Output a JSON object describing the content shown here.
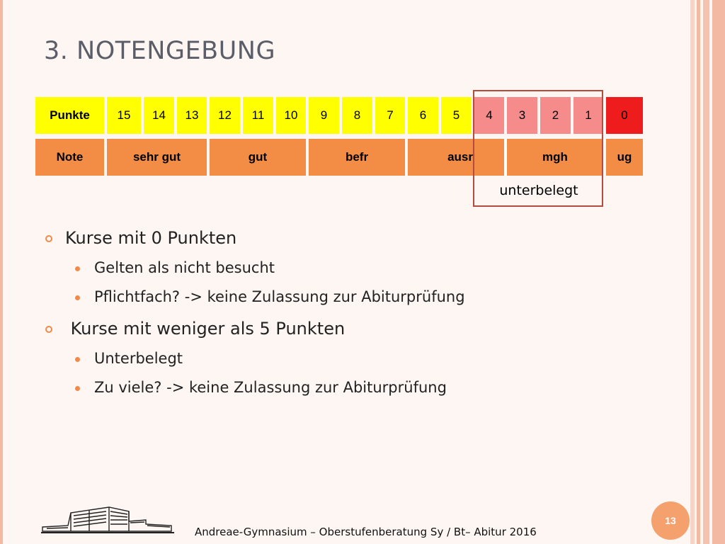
{
  "slide": {
    "title": "3. NOTENGEBUNG",
    "page_number": "13",
    "footer": "Andreae-Gymnasium – Oberstufenberatung Sy / Bt– Abitur 2016"
  },
  "grade_table": {
    "punkte_label": "Punkte",
    "note_label": "Note",
    "points": [
      "15",
      "14",
      "13",
      "12",
      "11",
      "10",
      "9",
      "8",
      "7",
      "6",
      "5",
      "4",
      "3",
      "2",
      "1",
      "0"
    ],
    "grades": {
      "sehr_gut": "sehr gut",
      "gut": "gut",
      "befr": "befr",
      "ausr": "ausr",
      "mgh": "mgh",
      "ug": "ug"
    },
    "highlight_label": "unterbelegt",
    "colors": {
      "yellow": "#ffff00",
      "pink": "#f58b8b",
      "red": "#ee1c1c",
      "orange": "#f38d45",
      "frame": "#b54b3e"
    }
  },
  "bullets": [
    {
      "text": "Kurse mit 0 Punkten",
      "children": [
        "Gelten als nicht besucht",
        "Pflichtfach? -> keine Zulassung zur Abiturprüfung"
      ]
    },
    {
      "text": " Kurse mit weniger als 5 Punkten",
      "children": [
        "Unterbelegt",
        "Zu viele? -> keine Zulassung zur Abiturprüfung"
      ]
    }
  ],
  "theme": {
    "accent": "#f08a4b",
    "title_color": "#5b5e68"
  }
}
